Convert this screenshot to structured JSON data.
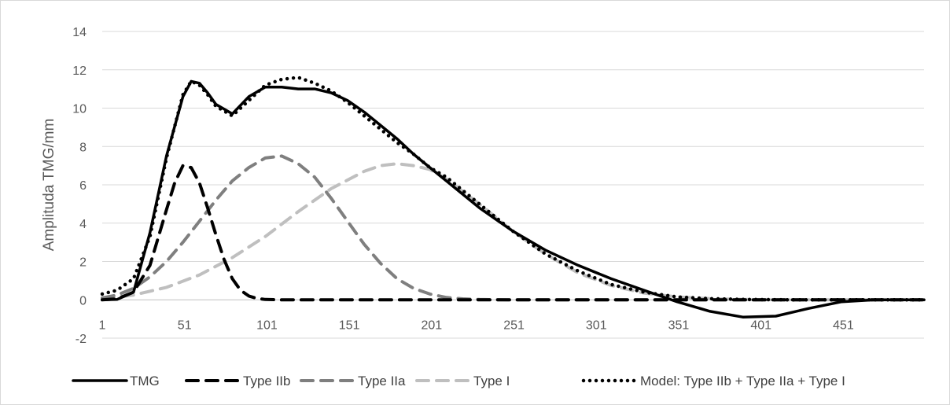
{
  "chart_data": {
    "type": "line",
    "title": "",
    "xlabel": "",
    "ylabel": "Amplituda TMG/mm",
    "xlim": [
      1,
      500
    ],
    "ylim": [
      -2,
      14
    ],
    "x_ticks": [
      "1",
      "51",
      "101",
      "151",
      "201",
      "251",
      "301",
      "351",
      "401",
      "451"
    ],
    "y_ticks": [
      "-2",
      "0",
      "2",
      "4",
      "6",
      "8",
      "10",
      "12",
      "14"
    ],
    "grid": "horizontal",
    "legend_position": "bottom",
    "series": [
      {
        "name": "TMG",
        "style": "solid",
        "color": "#000000",
        "x": [
          1,
          10,
          20,
          30,
          40,
          50,
          55,
          60,
          65,
          70,
          80,
          90,
          100,
          110,
          120,
          130,
          140,
          150,
          160,
          170,
          180,
          190,
          200,
          210,
          230,
          250,
          270,
          290,
          310,
          330,
          350,
          370,
          390,
          410,
          430,
          450,
          470,
          500
        ],
        "y": [
          0,
          0.02,
          0.4,
          3.5,
          7.5,
          10.6,
          11.4,
          11.3,
          10.8,
          10.2,
          9.7,
          10.6,
          11.1,
          11.1,
          11.0,
          11.0,
          10.8,
          10.4,
          9.8,
          9.1,
          8.4,
          7.6,
          6.9,
          6.2,
          4.8,
          3.6,
          2.6,
          1.8,
          1.1,
          0.5,
          -0.1,
          -0.6,
          -0.9,
          -0.85,
          -0.45,
          -0.1,
          0,
          0
        ]
      },
      {
        "name": "Type IIb",
        "style": "dash",
        "color": "#000000",
        "x": [
          1,
          10,
          20,
          30,
          40,
          45,
          50,
          55,
          60,
          65,
          70,
          75,
          80,
          85,
          90,
          95,
          100,
          110,
          130,
          160,
          200,
          250,
          300,
          350,
          400,
          450,
          500
        ],
        "y": [
          0,
          0.05,
          0.4,
          1.8,
          4.7,
          6.1,
          7.0,
          6.9,
          6.1,
          4.8,
          3.4,
          2.1,
          1.1,
          0.5,
          0.2,
          0.07,
          0.02,
          0,
          0,
          0,
          0,
          0,
          0,
          0,
          0,
          0,
          0
        ]
      },
      {
        "name": "Type IIa",
        "style": "dash",
        "color": "#7f7f7f",
        "x": [
          1,
          10,
          20,
          30,
          40,
          50,
          60,
          70,
          80,
          90,
          100,
          110,
          120,
          130,
          140,
          150,
          160,
          170,
          180,
          190,
          200,
          210,
          220,
          230,
          250,
          300,
          350,
          400,
          450,
          500
        ],
        "y": [
          0.1,
          0.25,
          0.6,
          1.2,
          2.0,
          3.0,
          4.1,
          5.2,
          6.2,
          6.9,
          7.4,
          7.5,
          7.1,
          6.4,
          5.3,
          4.1,
          2.9,
          1.9,
          1.1,
          0.6,
          0.3,
          0.12,
          0.05,
          0.02,
          0,
          0,
          0,
          0,
          0,
          0
        ]
      },
      {
        "name": "Type I",
        "style": "dash",
        "color": "#bfbfbf",
        "x": [
          1,
          20,
          40,
          60,
          80,
          100,
          120,
          140,
          160,
          170,
          180,
          190,
          200,
          210,
          230,
          250,
          270,
          290,
          310,
          330,
          350,
          370,
          390,
          420,
          450,
          500
        ],
        "y": [
          0.05,
          0.25,
          0.65,
          1.3,
          2.2,
          3.3,
          4.6,
          5.8,
          6.7,
          7.0,
          7.1,
          7.0,
          6.8,
          6.3,
          5.0,
          3.6,
          2.4,
          1.4,
          0.75,
          0.35,
          0.15,
          0.06,
          0.02,
          0,
          0,
          0
        ]
      },
      {
        "name": "Model: Type IIb + Type IIa + Type I",
        "style": "dot",
        "color": "#000000",
        "x": [
          1,
          10,
          20,
          30,
          40,
          50,
          55,
          60,
          65,
          70,
          80,
          90,
          100,
          110,
          120,
          130,
          140,
          150,
          160,
          170,
          180,
          190,
          200,
          210,
          230,
          250,
          270,
          290,
          310,
          330,
          350,
          370,
          390,
          420,
          450,
          500
        ],
        "y": [
          0.3,
          0.5,
          1.1,
          3.3,
          7.4,
          10.7,
          11.4,
          11.2,
          10.7,
          10.1,
          9.6,
          10.4,
          11.2,
          11.5,
          11.6,
          11.3,
          10.9,
          10.3,
          9.6,
          8.9,
          8.2,
          7.6,
          6.9,
          6.4,
          5.0,
          3.6,
          2.4,
          1.5,
          0.8,
          0.4,
          0.15,
          0.06,
          0.02,
          0,
          0,
          0
        ]
      }
    ]
  }
}
